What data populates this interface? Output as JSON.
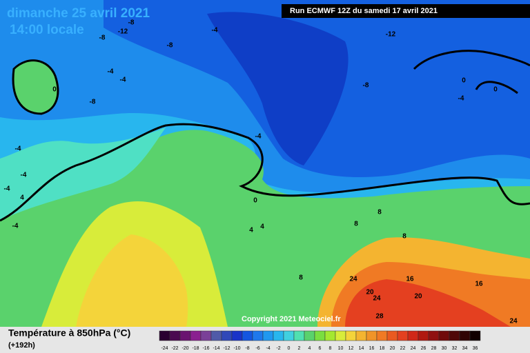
{
  "header": {
    "date": "dimanche 25 avril 2021",
    "time": "14:00 locale",
    "run": "Run ECMWF 12Z du samedi 17 avril 2021"
  },
  "copyright": "Copyright 2021 Meteociel.fr",
  "legend": {
    "title": "Température à 850hPa (°C)",
    "lead": "(+192h)",
    "scale": [
      -24,
      -22,
      -20,
      -18,
      -16,
      -14,
      -12,
      -10,
      -8,
      -6,
      -4,
      -2,
      0,
      2,
      4,
      6,
      8,
      10,
      12,
      14,
      16,
      18,
      20,
      22,
      24,
      26,
      28,
      30,
      32,
      34,
      36
    ]
  },
  "map": {
    "labels": [
      -8,
      -12,
      -8,
      -4,
      -8,
      -12,
      -4,
      -4,
      0,
      -8,
      -8,
      0,
      0,
      -4,
      -4,
      -4,
      -4,
      -4,
      -4,
      0,
      8,
      8,
      4,
      4,
      8,
      8,
      24,
      16,
      16,
      20,
      24,
      20,
      28,
      24,
      4
    ]
  }
}
